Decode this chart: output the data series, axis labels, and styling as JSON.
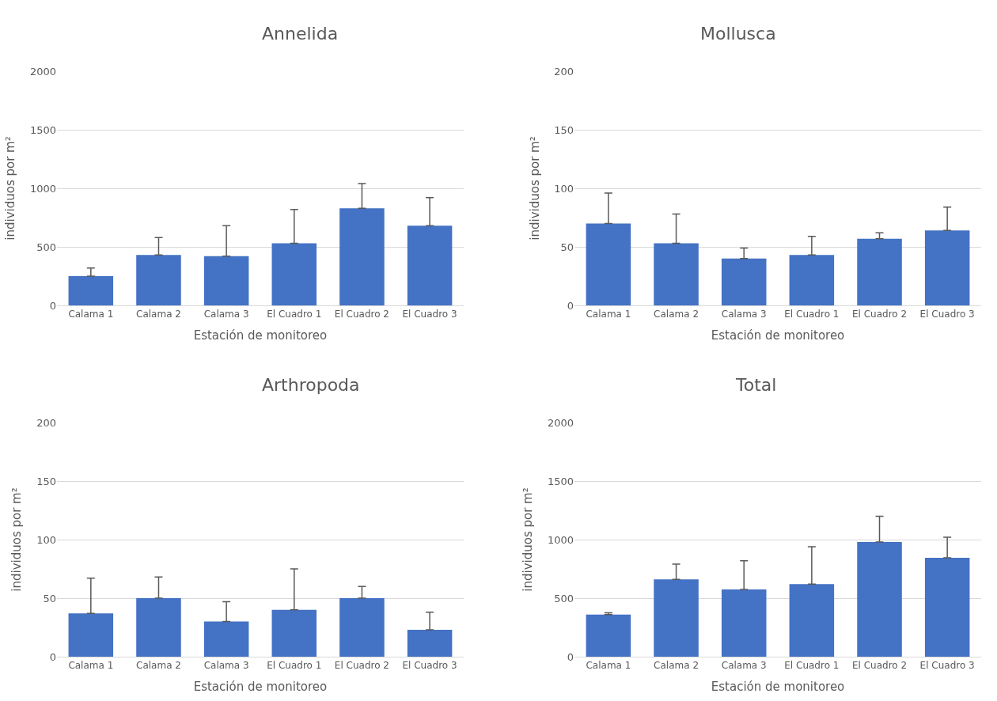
{
  "chart_data": [
    {
      "type": "bar",
      "title": "Annelida",
      "xlabel": "Estación de monitoreo",
      "ylabel": "individuos por m²",
      "categories": [
        "Calama 1",
        "Calama 2",
        "Calama 3",
        "El Cuadro 1",
        "El Cuadro 2",
        "El Cuadro 3"
      ],
      "color": "#4472c4",
      "values": [
        250,
        430,
        420,
        530,
        830,
        680
      ],
      "errors": [
        [
          250,
          320
        ],
        [
          430,
          580
        ],
        [
          420,
          680
        ],
        [
          530,
          820
        ],
        [
          830,
          1040
        ],
        [
          680,
          920
        ]
      ],
      "ylim": [
        0,
        2000
      ],
      "yticks": [
        0,
        500,
        1000,
        1500,
        2000
      ],
      "grid": "y"
    },
    {
      "type": "bar",
      "title": "Mollusca",
      "xlabel": "Estación de monitoreo",
      "ylabel": "individuos por m²",
      "categories": [
        "Calama 1",
        "Calama 2",
        "Calama 3",
        "El Cuadro 1",
        "El Cuadro 2",
        "El Cuadro 3"
      ],
      "color": "#4472c4",
      "values": [
        70,
        53,
        40,
        43,
        57,
        64
      ],
      "errors": [
        [
          70,
          96
        ],
        [
          53,
          78
        ],
        [
          40,
          49
        ],
        [
          43,
          59
        ],
        [
          57,
          62
        ],
        [
          64,
          84
        ]
      ],
      "ylim": [
        0,
        200
      ],
      "yticks": [
        0,
        50,
        100,
        150,
        200
      ],
      "grid": "y"
    },
    {
      "type": "bar",
      "title": "Arthropoda",
      "xlabel": "Estación de monitoreo",
      "ylabel": "individuos por m²",
      "categories": [
        "Calama 1",
        "Calama 2",
        "Calama 3",
        "El Cuadro 1",
        "El Cuadro 2",
        "El Cuadro 3"
      ],
      "color": "#4472c4",
      "values": [
        37,
        50,
        30,
        40,
        50,
        23
      ],
      "errors": [
        [
          37,
          67
        ],
        [
          50,
          68
        ],
        [
          30,
          47
        ],
        [
          40,
          75
        ],
        [
          50,
          60
        ],
        [
          23,
          38
        ]
      ],
      "ylim": [
        0,
        200
      ],
      "yticks": [
        0,
        50,
        100,
        150,
        200
      ],
      "grid": "y"
    },
    {
      "type": "bar",
      "title": "Total",
      "xlabel": "Estación de monitoreo",
      "ylabel": "individuos por m²",
      "categories": [
        "Calama 1",
        "Calama 2",
        "Calama 3",
        "El Cuadro 1",
        "El Cuadro 2",
        "El Cuadro 3"
      ],
      "color": "#4472c4",
      "values": [
        360,
        660,
        575,
        620,
        980,
        845
      ],
      "errors": [
        [
          360,
          375
        ],
        [
          660,
          790
        ],
        [
          575,
          820
        ],
        [
          620,
          940
        ],
        [
          980,
          1200
        ],
        [
          845,
          1020
        ]
      ],
      "ylim": [
        0,
        2000
      ],
      "yticks": [
        0,
        500,
        1000,
        1500,
        2000
      ],
      "grid": "y"
    }
  ]
}
